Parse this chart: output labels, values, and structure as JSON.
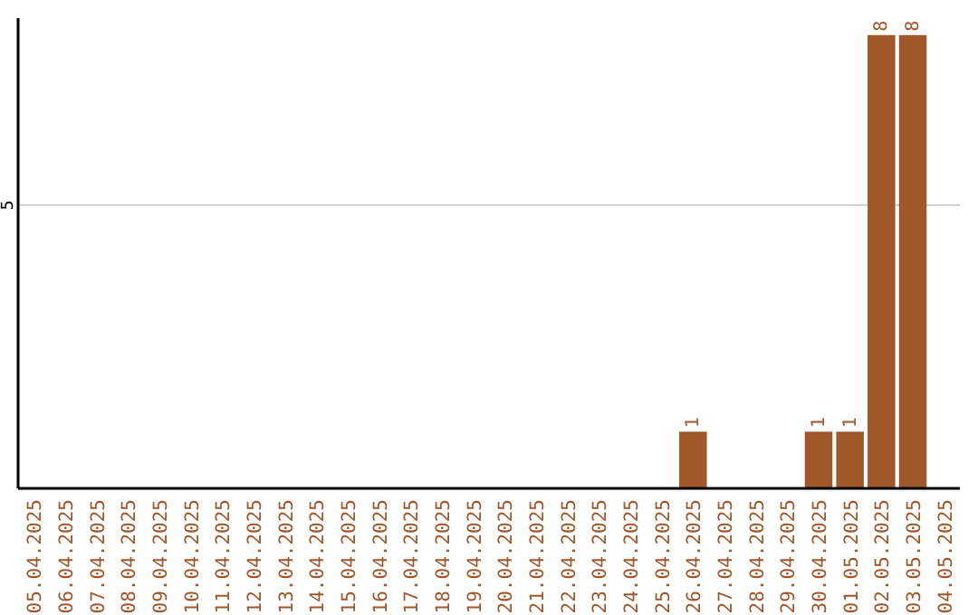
{
  "chart_data": {
    "type": "bar",
    "categories": [
      "05.04.2025",
      "06.04.2025",
      "07.04.2025",
      "08.04.2025",
      "09.04.2025",
      "10.04.2025",
      "11.04.2025",
      "12.04.2025",
      "13.04.2025",
      "14.04.2025",
      "15.04.2025",
      "16.04.2025",
      "17.04.2025",
      "18.04.2025",
      "19.04.2025",
      "20.04.2025",
      "21.04.2025",
      "22.04.2025",
      "23.04.2025",
      "24.04.2025",
      "25.04.2025",
      "26.04.2025",
      "27.04.2025",
      "28.04.2025",
      "29.04.2025",
      "30.04.2025",
      "01.05.2025",
      "02.05.2025",
      "03.05.2025",
      "04.05.2025"
    ],
    "values": [
      null,
      null,
      null,
      null,
      null,
      null,
      null,
      null,
      null,
      null,
      null,
      null,
      null,
      null,
      null,
      null,
      null,
      null,
      null,
      null,
      null,
      1,
      null,
      null,
      null,
      1,
      1,
      8,
      8,
      null
    ],
    "data_labels": true,
    "color": "#a0572a",
    "ylim": [
      0,
      8.3
    ],
    "yticks": [
      5
    ],
    "grid": "y"
  }
}
